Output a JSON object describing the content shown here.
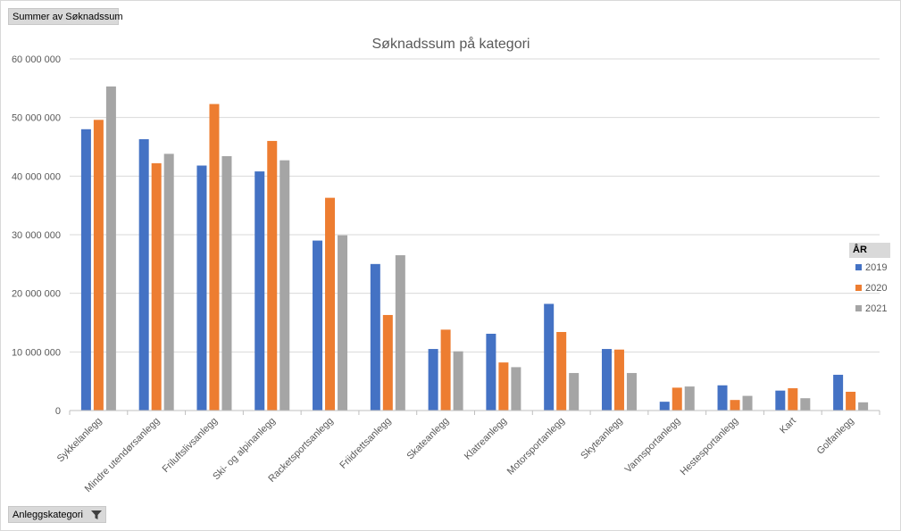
{
  "pivot": {
    "values_field": "Summer av Søknadssum",
    "axis_field": "Anleggskategori",
    "legend_field": "ÅR"
  },
  "icons": {
    "filter": "filter-icon"
  },
  "colors": {
    "series_2019": "#4472C4",
    "series_2020": "#ED7D31",
    "series_2021": "#A5A5A5",
    "gridline": "#d9d9d9",
    "axis": "#bfbfbf",
    "text": "#595959"
  },
  "chart_data": {
    "type": "bar",
    "title": "Søknadssum på kategori",
    "xlabel": "",
    "ylabel": "",
    "ylim": [
      0,
      60000000
    ],
    "yticks": [
      0,
      10000000,
      20000000,
      30000000,
      40000000,
      50000000,
      60000000
    ],
    "ytick_labels": [
      "0",
      "10 000 000",
      "20 000 000",
      "30 000 000",
      "40 000 000",
      "50 000 000",
      "60 000 000"
    ],
    "grid": true,
    "legend_position": "right",
    "categories": [
      "Sykkelanlegg",
      "Mindre utendørsanlegg",
      "Friluftslivsanlegg",
      "Ski- og alpinanlegg",
      "Racketsportsanlegg",
      "Friidrettsanlegg",
      "Skateanlegg",
      "Klatreanlegg",
      "Motorsportanlegg",
      "Skyteanlegg",
      "Vannsportanlegg",
      "Hestesportanlegg",
      "Kart",
      "Golfanlegg"
    ],
    "series": [
      {
        "name": "2019",
        "values": [
          48000000,
          46300000,
          41800000,
          40800000,
          29000000,
          25000000,
          10500000,
          13100000,
          18200000,
          10500000,
          1500000,
          4300000,
          3400000,
          6100000
        ]
      },
      {
        "name": "2020",
        "values": [
          49600000,
          42200000,
          52300000,
          46000000,
          36300000,
          16300000,
          13800000,
          8200000,
          13400000,
          10400000,
          3900000,
          1800000,
          3800000,
          3200000
        ]
      },
      {
        "name": "2021",
        "values": [
          55300000,
          43800000,
          43400000,
          42700000,
          29900000,
          26500000,
          10100000,
          7400000,
          6400000,
          6400000,
          4100000,
          2500000,
          2100000,
          1400000
        ]
      }
    ]
  }
}
